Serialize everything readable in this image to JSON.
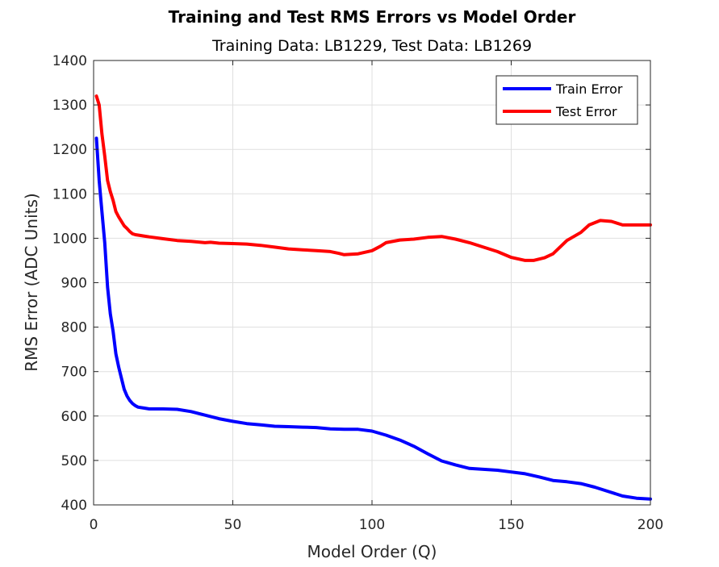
{
  "chart_data": {
    "type": "line",
    "title": "Training and Test RMS Errors vs Model Order",
    "subtitle": "Training Data: LB1229, Test Data: LB1269",
    "xlabel": "Model Order (Q)",
    "ylabel": "RMS Error (ADC Units)",
    "xlim": [
      0,
      200
    ],
    "ylim": [
      400,
      1400
    ],
    "xticks": [
      0,
      50,
      100,
      150,
      200
    ],
    "yticks": [
      400,
      500,
      600,
      700,
      800,
      900,
      1000,
      1100,
      1200,
      1300,
      1400
    ],
    "grid": true,
    "legend_position": "top-right",
    "colors": {
      "train": "#0000ff",
      "test": "#ff0000"
    },
    "series": [
      {
        "name": "Train Error",
        "color": "#0000ff",
        "x": [
          1,
          2,
          3,
          4,
          5,
          6,
          7,
          8,
          9,
          10,
          11,
          12,
          13,
          14,
          15,
          16,
          18,
          20,
          25,
          30,
          35,
          40,
          45,
          50,
          55,
          60,
          65,
          70,
          75,
          80,
          85,
          90,
          95,
          100,
          105,
          110,
          115,
          120,
          125,
          130,
          135,
          140,
          145,
          150,
          155,
          160,
          165,
          170,
          175,
          180,
          185,
          190,
          195,
          200
        ],
        "y": [
          1225,
          1130,
          1060,
          990,
          890,
          830,
          790,
          740,
          710,
          685,
          660,
          645,
          635,
          628,
          623,
          620,
          618,
          616,
          616,
          615,
          610,
          602,
          594,
          588,
          583,
          580,
          577,
          576,
          575,
          574,
          571,
          570,
          570,
          566,
          557,
          546,
          532,
          515,
          499,
          490,
          482,
          480,
          478,
          474,
          470,
          463,
          455,
          452,
          448,
          440,
          430,
          420,
          415,
          413
        ]
      },
      {
        "name": "Test Error",
        "color": "#ff0000",
        "x": [
          1,
          2,
          3,
          4,
          5,
          6,
          7,
          8,
          9,
          10,
          11,
          12,
          13,
          14,
          15,
          16,
          18,
          20,
          25,
          30,
          35,
          40,
          42,
          45,
          50,
          55,
          60,
          65,
          70,
          75,
          80,
          85,
          88,
          90,
          95,
          100,
          103,
          105,
          110,
          115,
          120,
          125,
          130,
          135,
          140,
          145,
          150,
          155,
          158,
          162,
          165,
          170,
          175,
          178,
          182,
          186,
          190,
          195,
          200
        ],
        "y": [
          1320,
          1300,
          1235,
          1185,
          1130,
          1105,
          1085,
          1060,
          1048,
          1038,
          1028,
          1022,
          1015,
          1010,
          1008,
          1007,
          1005,
          1003,
          999,
          995,
          993,
          990,
          991,
          989,
          988,
          987,
          984,
          980,
          976,
          974,
          972,
          970,
          966,
          963,
          965,
          972,
          982,
          990,
          996,
          998,
          1002,
          1004,
          998,
          990,
          980,
          970,
          957,
          950,
          950,
          956,
          965,
          995,
          1013,
          1030,
          1040,
          1038,
          1030,
          1030,
          1030
        ]
      }
    ]
  }
}
